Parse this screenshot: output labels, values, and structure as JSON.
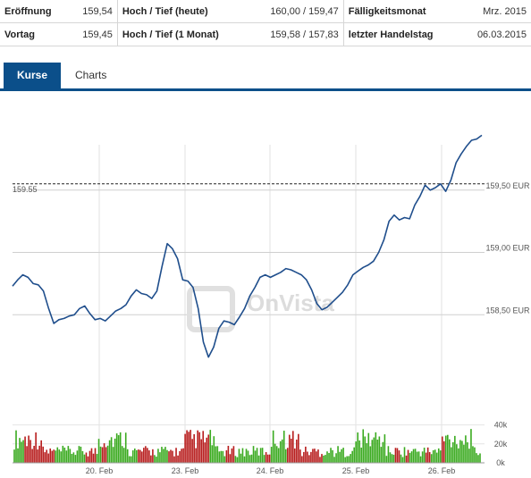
{
  "info_table": {
    "rows": [
      {
        "l1": "Eröffnung",
        "v1": "159,54",
        "l2": "Hoch / Tief (heute)",
        "v2": "160,00 / 159,47",
        "l3": "Fälligkeitsmonat",
        "v3": "Mrz. 2015"
      },
      {
        "l1": "Vortag",
        "v1": "159,45",
        "l2": "Hoch / Tief (1 Monat)",
        "v2": "159,58 / 157,83",
        "l3": "letzter Handelstag",
        "v3": "06.03.2015"
      }
    ]
  },
  "tabs": [
    {
      "label": "Kurse",
      "active": true
    },
    {
      "label": "Charts",
      "active": false
    }
  ],
  "watermark": "OnVista",
  "chart_data": {
    "type": "line",
    "currency": "EUR",
    "y_tick_labels": [
      "158,50 EUR",
      "159,00 EUR",
      "159,50 EUR"
    ],
    "y_ticks": [
      158.5,
      159.0,
      159.5
    ],
    "ylim": [
      158.0,
      159.95
    ],
    "reference_line": {
      "value": 159.55,
      "label": "159.55"
    },
    "x_tick_labels": [
      "20. Feb",
      "23. Feb",
      "24. Feb",
      "25. Feb",
      "26. Feb"
    ],
    "grid": true,
    "series": [
      {
        "color": "#1f4e8c",
        "values": [
          158.73,
          158.78,
          158.82,
          158.8,
          158.75,
          158.74,
          158.69,
          158.55,
          158.43,
          158.46,
          158.47,
          158.49,
          158.5,
          158.55,
          158.57,
          158.51,
          158.46,
          158.47,
          158.45,
          158.49,
          158.53,
          158.55,
          158.58,
          158.65,
          158.7,
          158.67,
          158.66,
          158.63,
          158.69,
          158.89,
          159.07,
          159.03,
          158.95,
          158.78,
          158.77,
          158.72,
          158.55,
          158.28,
          158.16,
          158.24,
          158.39,
          158.45,
          158.44,
          158.42,
          158.48,
          158.55,
          158.65,
          158.72,
          158.8,
          158.82,
          158.8,
          158.82,
          158.84,
          158.87,
          158.86,
          158.84,
          158.82,
          158.78,
          158.7,
          158.59,
          158.54,
          158.56,
          158.6,
          158.64,
          158.68,
          158.74,
          158.82,
          158.85,
          158.88,
          158.9,
          158.93,
          159.0,
          159.1,
          159.25,
          159.3,
          159.26,
          159.28,
          159.27,
          159.38,
          159.45,
          159.54,
          159.5,
          159.52,
          159.55,
          159.49,
          159.58,
          159.72,
          159.79,
          159.85,
          159.9,
          159.91,
          159.94
        ]
      }
    ],
    "volume": {
      "y_tick_labels": [
        "40k",
        "20k",
        "0k"
      ],
      "y_ticks": [
        40000,
        20000,
        0
      ],
      "ymax": 50000,
      "colors": {
        "up": "#3aaa1f",
        "down": "#b71c1c"
      }
    }
  }
}
